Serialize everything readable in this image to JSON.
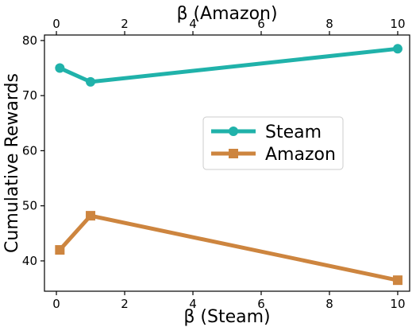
{
  "chart_data": {
    "type": "line",
    "title": "",
    "xlabel_bottom": "β (Steam)",
    "xlabel_top": "β (Amazon)",
    "ylabel": "Cumulative Rewards",
    "xlim": [
      -0.35,
      10.35
    ],
    "ylim": [
      34.5,
      81
    ],
    "xticks": [
      "0",
      "2",
      "4",
      "6",
      "8",
      "10"
    ],
    "xtick_values": [
      0,
      2,
      4,
      6,
      8,
      10
    ],
    "yticks": [
      "40",
      "50",
      "60",
      "70",
      "80"
    ],
    "ytick_values": [
      40,
      50,
      60,
      70,
      80
    ],
    "grid": false,
    "legend_position": "center-right",
    "series": [
      {
        "name": "Steam",
        "axis": "bottom",
        "marker": "circle",
        "color": "#20b2aa",
        "x": [
          0.1,
          1,
          10
        ],
        "y": [
          75.0,
          72.5,
          78.5
        ]
      },
      {
        "name": "Amazon",
        "axis": "top",
        "marker": "square",
        "color": "#cd853f",
        "x": [
          0.1,
          1,
          10
        ],
        "y": [
          42.0,
          48.2,
          36.5
        ]
      }
    ]
  }
}
